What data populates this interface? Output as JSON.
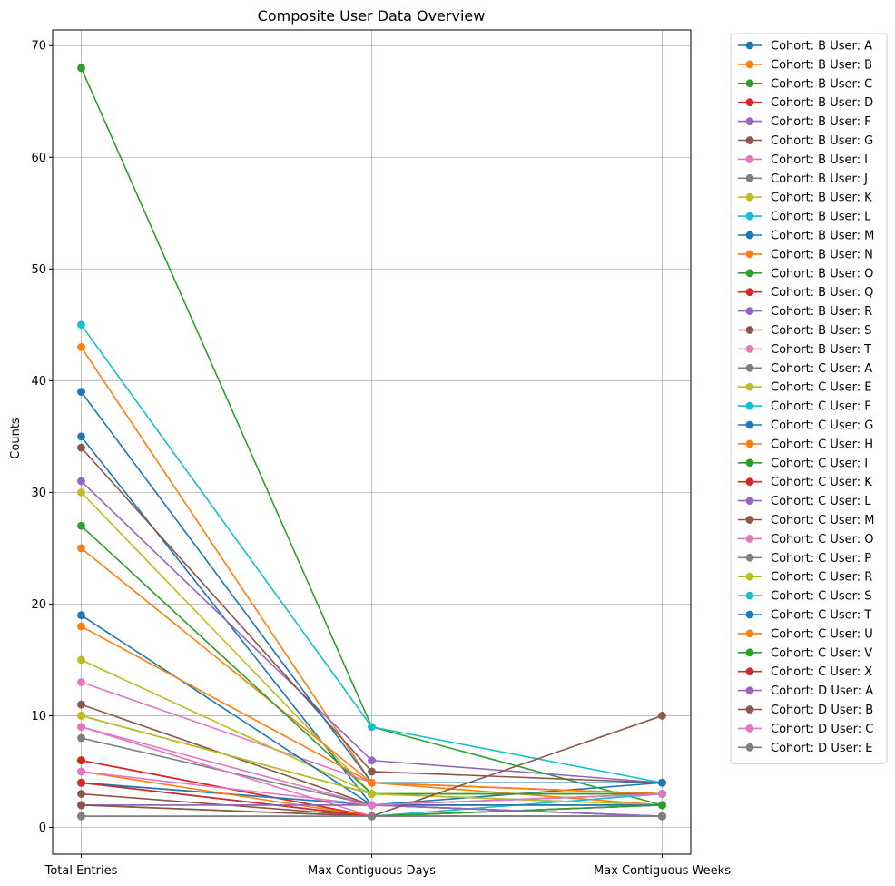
{
  "chart_data": {
    "type": "line",
    "title": "Composite User Data Overview",
    "xlabel": "",
    "ylabel": "Counts",
    "categories": [
      "Total Entries",
      "Max Contiguous Days",
      "Max Contiguous Weeks"
    ],
    "ylim": [
      -2.4,
      71.4
    ],
    "yticks": [
      0,
      10,
      20,
      30,
      40,
      50,
      60,
      70
    ],
    "grid": true,
    "legend_position": "outside-right",
    "series": [
      {
        "name": "Cohort: B User: A",
        "color": "#1f77b4",
        "values": [
          35,
          2,
          4
        ]
      },
      {
        "name": "Cohort: B User: B",
        "color": "#ff7f0e",
        "values": [
          43,
          4,
          3
        ]
      },
      {
        "name": "Cohort: B User: C",
        "color": "#2ca02c",
        "values": [
          68,
          9,
          2
        ]
      },
      {
        "name": "Cohort: B User: D",
        "color": "#d62728",
        "values": [
          6,
          1,
          2
        ]
      },
      {
        "name": "Cohort: B User: F",
        "color": "#9467bd",
        "values": [
          31,
          6,
          4
        ]
      },
      {
        "name": "Cohort: B User: G",
        "color": "#8c564b",
        "values": [
          34,
          5,
          4
        ]
      },
      {
        "name": "Cohort: B User: I",
        "color": "#e377c2",
        "values": [
          9,
          2,
          1
        ]
      },
      {
        "name": "Cohort: B User: J",
        "color": "#7f7f7f",
        "values": [
          1,
          1,
          1
        ]
      },
      {
        "name": "Cohort: B User: K",
        "color": "#bcbd22",
        "values": [
          30,
          3,
          3
        ]
      },
      {
        "name": "Cohort: B User: L",
        "color": "#17becf",
        "values": [
          45,
          9,
          4
        ]
      },
      {
        "name": "Cohort: B User: M",
        "color": "#1f77b4",
        "values": [
          39,
          4,
          4
        ]
      },
      {
        "name": "Cohort: B User: N",
        "color": "#ff7f0e",
        "values": [
          25,
          4,
          2
        ]
      },
      {
        "name": "Cohort: B User: O",
        "color": "#2ca02c",
        "values": [
          27,
          3,
          2
        ]
      },
      {
        "name": "Cohort: B User: Q",
        "color": "#d62728",
        "values": [
          4,
          1,
          1
        ]
      },
      {
        "name": "Cohort: B User: R",
        "color": "#9467bd",
        "values": [
          2,
          2,
          2
        ]
      },
      {
        "name": "Cohort: B User: S",
        "color": "#8c564b",
        "values": [
          11,
          2,
          2
        ]
      },
      {
        "name": "Cohort: B User: T",
        "color": "#e377c2",
        "values": [
          13,
          4,
          3
        ]
      },
      {
        "name": "Cohort: C User: A",
        "color": "#7f7f7f",
        "values": [
          8,
          2,
          2
        ]
      },
      {
        "name": "Cohort: C User: E",
        "color": "#bcbd22",
        "values": [
          15,
          3,
          3
        ]
      },
      {
        "name": "Cohort: C User: F",
        "color": "#17becf",
        "values": [
          4,
          1,
          3
        ]
      },
      {
        "name": "Cohort: C User: G",
        "color": "#1f77b4",
        "values": [
          19,
          2,
          3
        ]
      },
      {
        "name": "Cohort: C User: H",
        "color": "#ff7f0e",
        "values": [
          18,
          4,
          3
        ]
      },
      {
        "name": "Cohort: C User: I",
        "color": "#2ca02c",
        "values": [
          10,
          3,
          3
        ]
      },
      {
        "name": "Cohort: C User: K",
        "color": "#d62728",
        "values": [
          6,
          1,
          1
        ]
      },
      {
        "name": "Cohort: C User: L",
        "color": "#9467bd",
        "values": [
          4,
          2,
          1
        ]
      },
      {
        "name": "Cohort: C User: M",
        "color": "#8c564b",
        "values": [
          3,
          1,
          2
        ]
      },
      {
        "name": "Cohort: C User: O",
        "color": "#e377c2",
        "values": [
          9,
          1,
          2
        ]
      },
      {
        "name": "Cohort: C User: P",
        "color": "#7f7f7f",
        "values": [
          2,
          2,
          1
        ]
      },
      {
        "name": "Cohort: C User: R",
        "color": "#bcbd22",
        "values": [
          10,
          3,
          2
        ]
      },
      {
        "name": "Cohort: C User: S",
        "color": "#17becf",
        "values": [
          1,
          1,
          2
        ]
      },
      {
        "name": "Cohort: C User: T",
        "color": "#1f77b4",
        "values": [
          4,
          2,
          2
        ]
      },
      {
        "name": "Cohort: C User: U",
        "color": "#ff7f0e",
        "values": [
          5,
          1,
          1
        ]
      },
      {
        "name": "Cohort: C User: V",
        "color": "#2ca02c",
        "values": [
          2,
          1,
          2
        ]
      },
      {
        "name": "Cohort: C User: X",
        "color": "#d62728",
        "values": [
          4,
          1,
          1
        ]
      },
      {
        "name": "Cohort: D User: A",
        "color": "#9467bd",
        "values": [
          2,
          2,
          1
        ]
      },
      {
        "name": "Cohort: D User: B",
        "color": "#8c564b",
        "values": [
          2,
          1,
          10
        ]
      },
      {
        "name": "Cohort: D User: C",
        "color": "#e377c2",
        "values": [
          5,
          2,
          3
        ]
      },
      {
        "name": "Cohort: D User: E",
        "color": "#7f7f7f",
        "values": [
          1,
          1,
          1
        ]
      }
    ]
  }
}
